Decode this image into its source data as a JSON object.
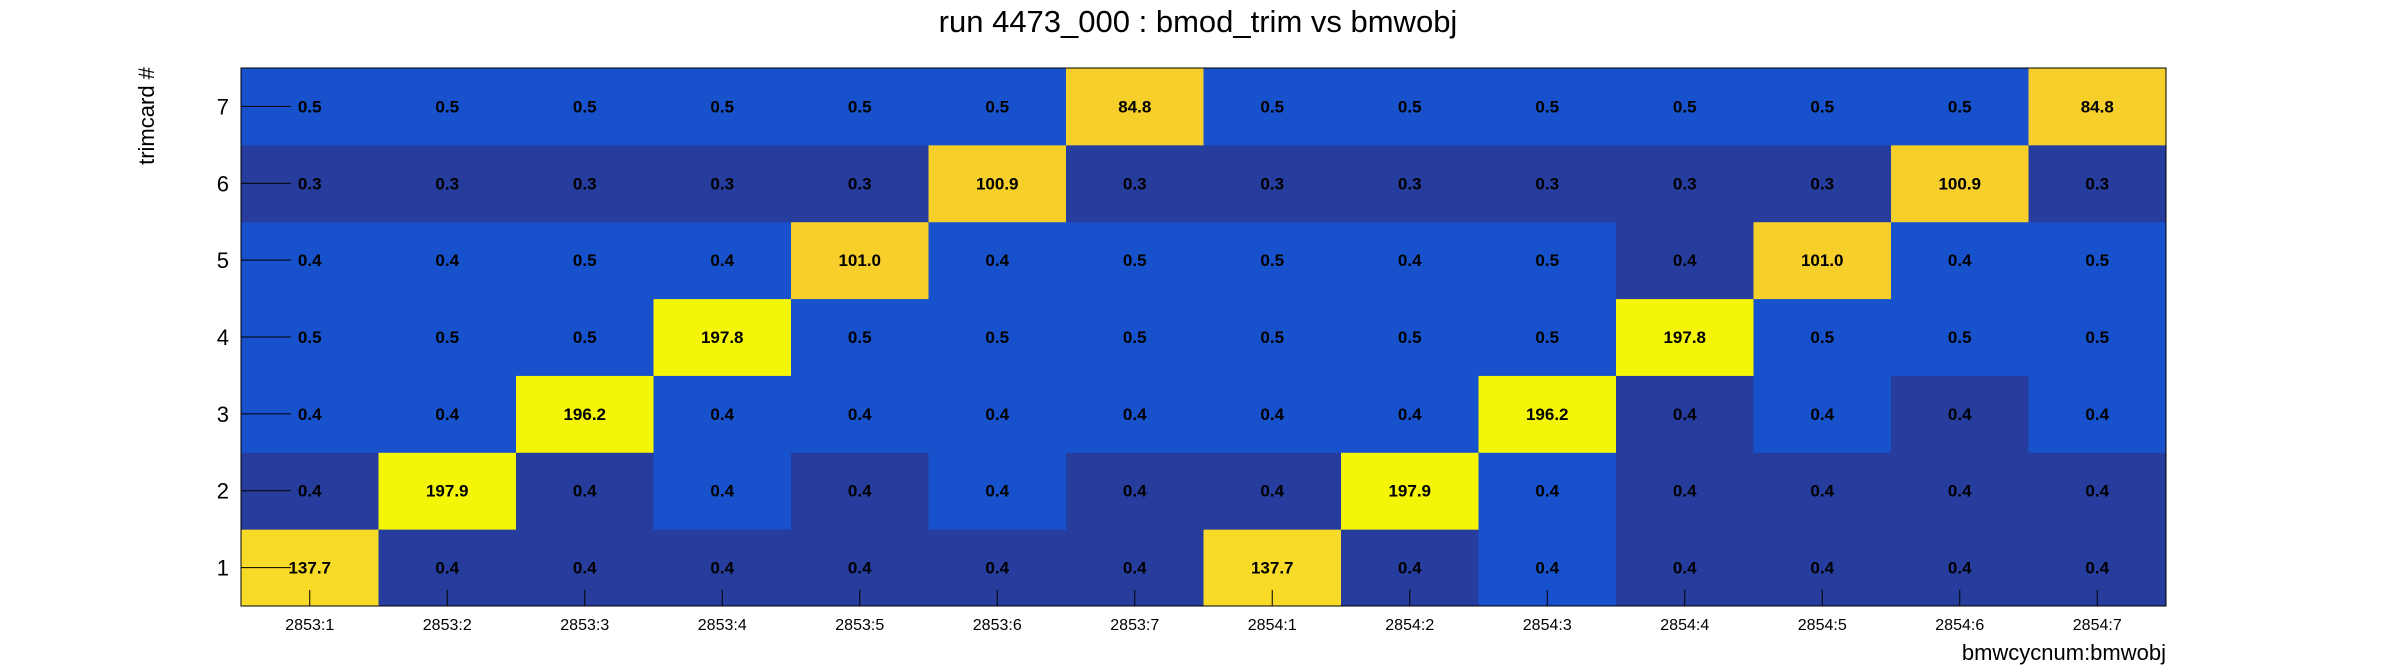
{
  "chart_data": {
    "type": "heatmap",
    "title": "run 4473_000 : bmod_trim vs bmwobj",
    "xlabel": "bmwcycnum:bmwobj",
    "ylabel": "trimcard #",
    "x_categories": [
      "2853:1",
      "2853:2",
      "2853:3",
      "2853:4",
      "2853:5",
      "2853:6",
      "2853:7",
      "2854:1",
      "2854:2",
      "2854:3",
      "2854:4",
      "2854:5",
      "2854:6",
      "2854:7"
    ],
    "y_categories": [
      "1",
      "2",
      "3",
      "4",
      "5",
      "6",
      "7"
    ],
    "values": [
      [
        137.7,
        0.4,
        0.4,
        0.4,
        0.4,
        0.4,
        0.4,
        137.7,
        0.4,
        0.4,
        0.4,
        0.4,
        0.4,
        0.4
      ],
      [
        0.4,
        197.9,
        0.4,
        0.4,
        0.4,
        0.4,
        0.4,
        0.4,
        197.9,
        0.4,
        0.4,
        0.4,
        0.4,
        0.4
      ],
      [
        0.4,
        0.4,
        196.2,
        0.4,
        0.4,
        0.4,
        0.4,
        0.4,
        0.4,
        196.2,
        0.4,
        0.4,
        0.4,
        0.4
      ],
      [
        0.5,
        0.5,
        0.5,
        197.8,
        0.5,
        0.5,
        0.5,
        0.5,
        0.5,
        0.5,
        197.8,
        0.5,
        0.5,
        0.5
      ],
      [
        0.4,
        0.4,
        0.5,
        0.4,
        101.0,
        0.4,
        0.5,
        0.5,
        0.4,
        0.5,
        0.4,
        101.0,
        0.4,
        0.5
      ],
      [
        0.3,
        0.3,
        0.3,
        0.3,
        0.3,
        100.9,
        0.3,
        0.3,
        0.3,
        0.3,
        0.3,
        0.3,
        100.9,
        0.3
      ],
      [
        0.5,
        0.5,
        0.5,
        0.5,
        0.5,
        0.5,
        84.8,
        0.5,
        0.5,
        0.5,
        0.5,
        0.5,
        0.5,
        84.8
      ]
    ],
    "value_labels": [
      [
        "137.7",
        "0.4",
        "0.4",
        "0.4",
        "0.4",
        "0.4",
        "0.4",
        "137.7",
        "0.4",
        "0.4",
        "0.4",
        "0.4",
        "0.4",
        "0.4"
      ],
      [
        "0.4",
        "197.9",
        "0.4",
        "0.4",
        "0.4",
        "0.4",
        "0.4",
        "0.4",
        "197.9",
        "0.4",
        "0.4",
        "0.4",
        "0.4",
        "0.4"
      ],
      [
        "0.4",
        "0.4",
        "196.2",
        "0.4",
        "0.4",
        "0.4",
        "0.4",
        "0.4",
        "0.4",
        "196.2",
        "0.4",
        "0.4",
        "0.4",
        "0.4"
      ],
      [
        "0.5",
        "0.5",
        "0.5",
        "197.8",
        "0.5",
        "0.5",
        "0.5",
        "0.5",
        "0.5",
        "0.5",
        "197.8",
        "0.5",
        "0.5",
        "0.5"
      ],
      [
        "0.4",
        "0.4",
        "0.5",
        "0.4",
        "101.0",
        "0.4",
        "0.5",
        "0.5",
        "0.4",
        "0.5",
        "0.4",
        "101.0",
        "0.4",
        "0.5"
      ],
      [
        "0.3",
        "0.3",
        "0.3",
        "0.3",
        "0.3",
        "100.9",
        "0.3",
        "0.3",
        "0.3",
        "0.3",
        "0.3",
        "0.3",
        "100.9",
        "0.3"
      ],
      [
        "0.5",
        "0.5",
        "0.5",
        "0.5",
        "0.5",
        "0.5",
        "84.8",
        "0.5",
        "0.5",
        "0.5",
        "0.5",
        "0.5",
        "0.5",
        "84.8"
      ]
    ],
    "colors": {
      "dark_blue": "#263d9d",
      "blue": "#1752cc",
      "gold": "#f6cf2b",
      "orange_yellow": "#f8db28",
      "yellow": "#f5f50a"
    },
    "color_map": [
      [
        "orange_yellow",
        "dark_blue",
        "dark_blue",
        "dark_blue",
        "dark_blue",
        "dark_blue",
        "dark_blue",
        "orange_yellow",
        "dark_blue",
        "blue",
        "dark_blue",
        "dark_blue",
        "dark_blue",
        "dark_blue"
      ],
      [
        "dark_blue",
        "yellow",
        "dark_blue",
        "blue",
        "dark_blue",
        "blue",
        "dark_blue",
        "dark_blue",
        "yellow",
        "blue",
        "dark_blue",
        "dark_blue",
        "dark_blue",
        "dark_blue"
      ],
      [
        "blue",
        "blue",
        "yellow",
        "blue",
        "blue",
        "blue",
        "blue",
        "blue",
        "blue",
        "yellow",
        "dark_blue",
        "blue",
        "dark_blue",
        "blue"
      ],
      [
        "blue",
        "blue",
        "blue",
        "yellow",
        "blue",
        "blue",
        "blue",
        "blue",
        "blue",
        "blue",
        "yellow",
        "blue",
        "blue",
        "blue"
      ],
      [
        "blue",
        "blue",
        "blue",
        "blue",
        "gold",
        "blue",
        "blue",
        "blue",
        "blue",
        "blue",
        "dark_blue",
        "gold",
        "blue",
        "blue"
      ],
      [
        "dark_blue",
        "dark_blue",
        "dark_blue",
        "dark_blue",
        "dark_blue",
        "gold",
        "dark_blue",
        "dark_blue",
        "dark_blue",
        "dark_blue",
        "dark_blue",
        "dark_blue",
        "gold",
        "dark_blue"
      ],
      [
        "blue",
        "blue",
        "blue",
        "blue",
        "blue",
        "blue",
        "gold",
        "blue",
        "blue",
        "blue",
        "blue",
        "blue",
        "blue",
        "gold"
      ]
    ]
  }
}
